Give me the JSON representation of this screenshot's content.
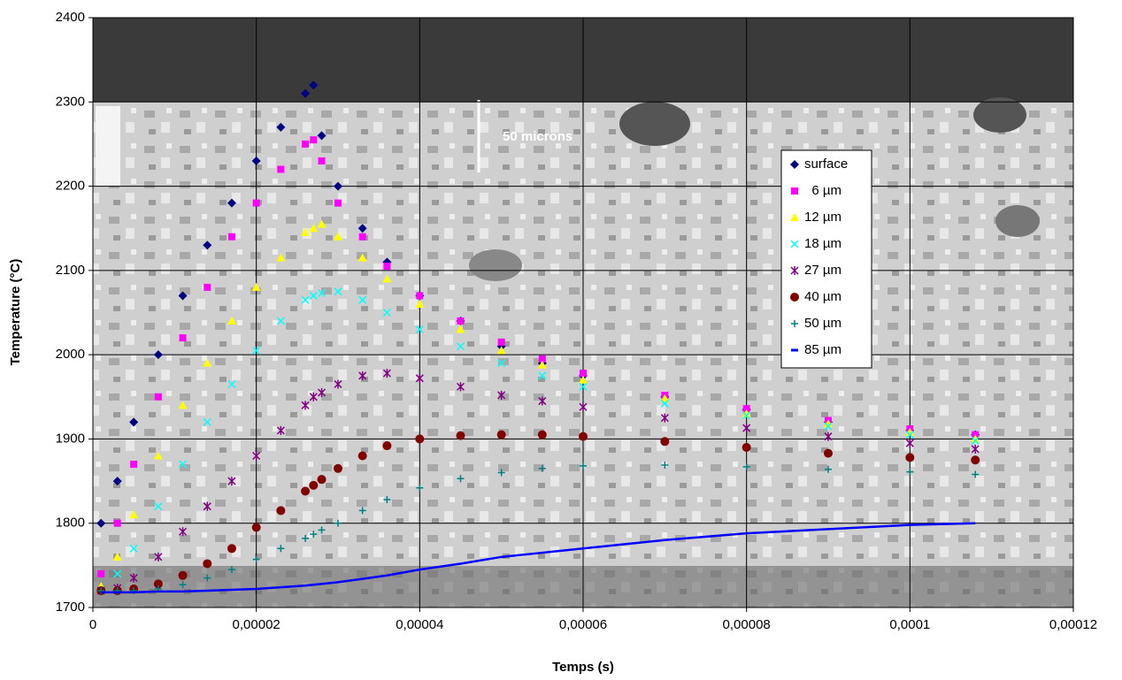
{
  "chart_data": {
    "type": "scatter",
    "x_label": "Temps (s)",
    "y_label": "Temperature (°C)",
    "annotation": "50 microns",
    "xlim": [
      0,
      0.00012
    ],
    "ylim": [
      1700,
      2400
    ],
    "xticks": [
      0,
      {
        "value": 2e-05,
        "label": "0,00002"
      },
      {
        "value": 4e-05,
        "label": "0,00004"
      },
      {
        "value": 6e-05,
        "label": "0,00006"
      },
      {
        "value": 8e-05,
        "label": "0,00008"
      },
      {
        "value": 0.0001,
        "label": "0,0001"
      },
      {
        "value": 0.00012,
        "label": "0,00012"
      }
    ],
    "yticks": [
      1700,
      1800,
      1900,
      2000,
      2100,
      2200,
      2300,
      2400
    ],
    "grid": true,
    "legend": "right",
    "x": [
      1e-06,
      3e-06,
      5e-06,
      8e-06,
      1.1e-05,
      1.4e-05,
      1.7e-05,
      2e-05,
      2.3e-05,
      2.6e-05,
      2.7e-05,
      2.8e-05,
      3e-05,
      3.3e-05,
      3.6e-05,
      4e-05,
      4.5e-05,
      5e-05,
      5.5e-05,
      6e-05,
      7e-05,
      8e-05,
      9e-05,
      0.0001,
      0.000108
    ],
    "series": [
      {
        "name": "surface",
        "color": "#000080",
        "marker": "diamond",
        "values": [
          1800,
          1850,
          1920,
          2000,
          2070,
          2130,
          2180,
          2230,
          2270,
          2310,
          2320,
          2260,
          2200,
          2150,
          2110,
          2070,
          2040,
          2010,
          1990,
          1975,
          1950,
          1935,
          1920,
          1910,
          1905
        ]
      },
      {
        "name": "  6 µm",
        "color": "#ff00ff",
        "marker": "square",
        "values": [
          1740,
          1800,
          1870,
          1950,
          2020,
          2080,
          2140,
          2180,
          2220,
          2250,
          2255,
          2230,
          2180,
          2140,
          2105,
          2070,
          2040,
          2015,
          1995,
          1978,
          1952,
          1936,
          1922,
          1912,
          1905
        ]
      },
      {
        "name": "12 µm",
        "color": "#ffff00",
        "marker": "triangle",
        "values": [
          1725,
          1760,
          1810,
          1880,
          1940,
          1990,
          2040,
          2080,
          2115,
          2145,
          2150,
          2155,
          2140,
          2115,
          2090,
          2060,
          2030,
          2005,
          1988,
          1970,
          1948,
          1930,
          1918,
          1908,
          1900
        ]
      },
      {
        "name": "18 µm",
        "color": "#00ffff",
        "marker": "x",
        "values": [
          1720,
          1740,
          1770,
          1820,
          1870,
          1920,
          1965,
          2005,
          2040,
          2065,
          2070,
          2073,
          2075,
          2065,
          2050,
          2030,
          2010,
          1990,
          1975,
          1962,
          1942,
          1928,
          1915,
          1905,
          1898
        ]
      },
      {
        "name": "27 µm",
        "color": "#800080",
        "marker": "star",
        "values": [
          1720,
          1723,
          1735,
          1760,
          1790,
          1820,
          1850,
          1880,
          1910,
          1940,
          1950,
          1955,
          1965,
          1975,
          1978,
          1972,
          1962,
          1952,
          1945,
          1938,
          1925,
          1913,
          1903,
          1895,
          1888
        ]
      },
      {
        "name": "40 µm",
        "color": "#800000",
        "marker": "circle",
        "values": [
          1720,
          1720,
          1722,
          1728,
          1738,
          1752,
          1770,
          1795,
          1815,
          1838,
          1845,
          1852,
          1865,
          1880,
          1892,
          1900,
          1904,
          1905,
          1905,
          1903,
          1897,
          1890,
          1883,
          1878,
          1875
        ]
      },
      {
        "name": "50 µm",
        "color": "#008080",
        "marker": "plus",
        "values": [
          1720,
          1720,
          1720,
          1722,
          1727,
          1735,
          1745,
          1757,
          1770,
          1782,
          1787,
          1792,
          1800,
          1815,
          1828,
          1842,
          1853,
          1860,
          1865,
          1868,
          1869,
          1867,
          1864,
          1861,
          1858
        ]
      },
      {
        "name": "85 µm",
        "color": "#0000ff",
        "marker": "line",
        "values": [
          1718,
          1718,
          1718,
          1719,
          1719,
          1720,
          1721,
          1722,
          1724,
          1726,
          1727,
          1728,
          1730,
          1734,
          1738,
          1745,
          1752,
          1760,
          1765,
          1770,
          1780,
          1788,
          1793,
          1798,
          1800
        ]
      }
    ]
  }
}
